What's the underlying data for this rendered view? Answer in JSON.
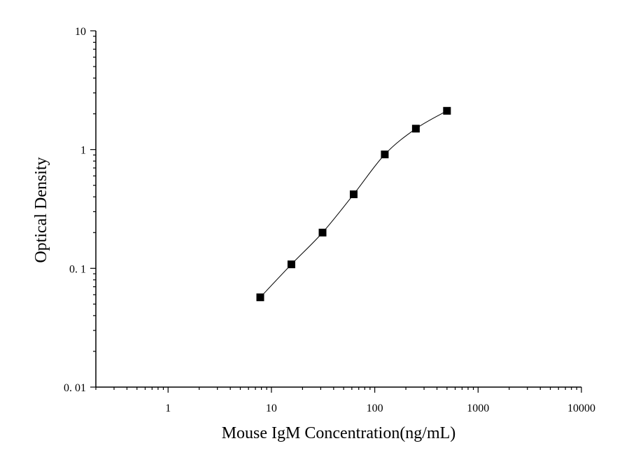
{
  "chart_data": {
    "type": "scatter",
    "title": "",
    "xlabel": "Mouse IgM Concentration(ng/mL)",
    "ylabel": "Optical Density",
    "xscale": "log",
    "yscale": "log",
    "xlim": [
      0.2,
      10000
    ],
    "ylim": [
      0.01,
      10
    ],
    "grid": false,
    "xticks": [
      {
        "value": 1,
        "label": "1"
      },
      {
        "value": 10,
        "label": "10"
      },
      {
        "value": 100,
        "label": "100"
      },
      {
        "value": 1000,
        "label": "1000"
      },
      {
        "value": 10000,
        "label": "10000"
      }
    ],
    "yticks": [
      {
        "value": 0.01,
        "label": "0. 01"
      },
      {
        "value": 0.1,
        "label": "0. 1"
      },
      {
        "value": 1,
        "label": "1"
      },
      {
        "value": 10,
        "label": "10"
      }
    ],
    "series": [
      {
        "x": [
          7.8,
          15.6,
          31.25,
          62.5,
          125,
          250,
          500
        ],
        "y": [
          0.057,
          0.108,
          0.2,
          0.42,
          0.91,
          1.5,
          2.12
        ],
        "marker": "square",
        "line": "smooth",
        "color": "#000000"
      }
    ]
  }
}
